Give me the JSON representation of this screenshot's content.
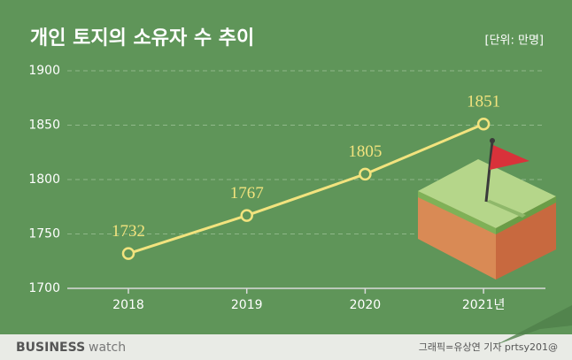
{
  "chart_data": {
    "type": "line",
    "title": "개인 토지의 소유자 수 추이",
    "unit_label": "[단위: 만명]",
    "categories": [
      "2018",
      "2019",
      "2020",
      "2021년"
    ],
    "values": [
      1732,
      1767,
      1805,
      1851
    ],
    "color": "#f2e37e",
    "ylim": [
      1700,
      1900
    ],
    "yticks": [
      1700,
      1750,
      1800,
      1850,
      1900
    ],
    "grid": true
  },
  "footer": {
    "logo_bold": "BUSINESS",
    "logo_light": "watch",
    "credit": "그래픽=유상연 기자 prtsy201@"
  }
}
